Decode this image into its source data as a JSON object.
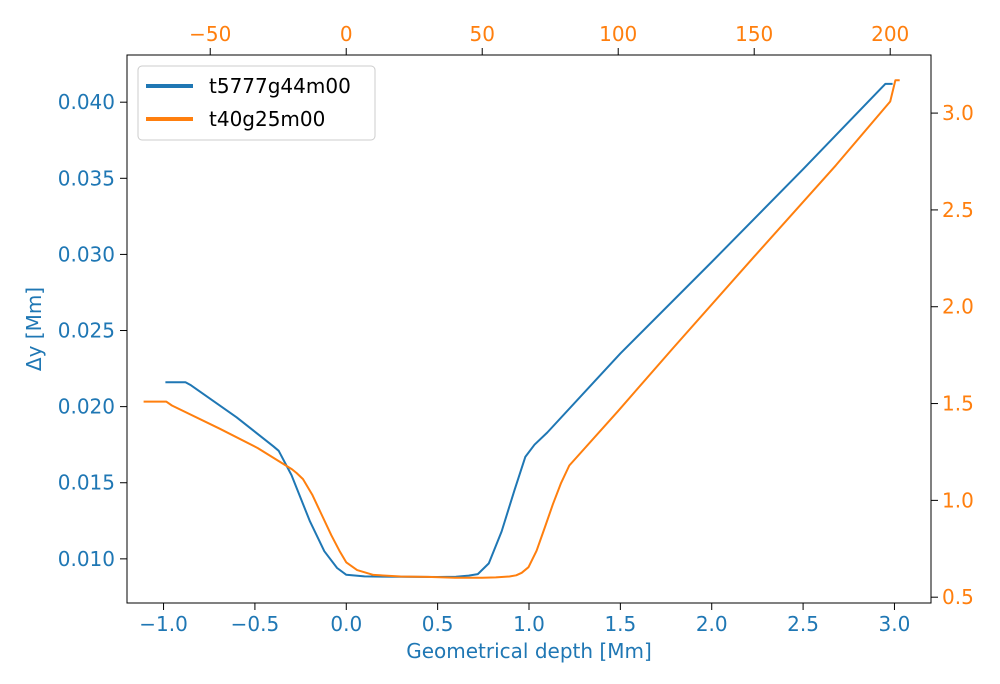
{
  "colors": {
    "bottom_left_axis": "#1f77b4",
    "top_right_axis": "#ff7f0e",
    "series_1": "#1f77b4",
    "series_2": "#ff7f0e"
  },
  "chart_data": {
    "type": "line",
    "xlabel": "Geometrical depth [Mm]",
    "ylabel": "Δy [Mm]",
    "legend_position": "upper-left",
    "grid": false,
    "bottom_axis": {
      "range": [
        -1.2,
        3.2
      ],
      "ticks": [
        -1.0,
        -0.5,
        0.0,
        0.5,
        1.0,
        1.5,
        2.0,
        2.5,
        3.0
      ],
      "tick_labels": [
        "−1.0",
        "−0.5",
        "0.0",
        "0.5",
        "1.0",
        "1.5",
        "2.0",
        "2.5",
        "3.0"
      ]
    },
    "left_axis": {
      "range": [
        0.0071,
        0.0431
      ],
      "ticks": [
        0.01,
        0.015,
        0.02,
        0.025,
        0.03,
        0.035,
        0.04
      ],
      "tick_labels": [
        "0.010",
        "0.015",
        "0.020",
        "0.025",
        "0.030",
        "0.035",
        "0.040"
      ]
    },
    "top_axis": {
      "range": [
        -80.6,
        215.0
      ],
      "ticks": [
        -50,
        0,
        50,
        100,
        150,
        200
      ],
      "tick_labels": [
        "−50",
        "0",
        "50",
        "100",
        "150",
        "200"
      ]
    },
    "right_axis": {
      "range": [
        0.47,
        3.3
      ],
      "ticks": [
        0.5,
        1.0,
        1.5,
        2.0,
        2.5,
        3.0
      ],
      "tick_labels": [
        "0.5",
        "1.0",
        "1.5",
        "2.0",
        "2.5",
        "3.0"
      ]
    },
    "series": [
      {
        "name": "t5777g44m00",
        "axes": "bottom-left",
        "x": [
          -0.99,
          -0.88,
          -0.85,
          -0.6,
          -0.4,
          -0.37,
          -0.3,
          -0.2,
          -0.12,
          -0.05,
          0.0,
          0.1,
          0.3,
          0.5,
          0.6,
          0.67,
          0.72,
          0.78,
          0.85,
          0.92,
          0.98,
          1.03,
          1.1,
          1.5,
          2.0,
          2.5,
          2.95,
          2.99
        ],
        "y": [
          0.0216,
          0.0216,
          0.0214,
          0.0193,
          0.0174,
          0.0171,
          0.0155,
          0.0125,
          0.0105,
          0.0094,
          0.00895,
          0.00885,
          0.00882,
          0.00881,
          0.00883,
          0.0089,
          0.009,
          0.0097,
          0.0118,
          0.0145,
          0.0167,
          0.0175,
          0.0183,
          0.0235,
          0.0295,
          0.0356,
          0.0412,
          0.0412
        ]
      },
      {
        "name": "t40g25m00",
        "axes": "top-right",
        "x": [
          -74.5,
          -66.2,
          -64.1,
          -46.5,
          -32.5,
          -19.9,
          -18.2,
          -15.9,
          -12.5,
          -9.5,
          -5.5,
          -2.5,
          0.0,
          4.0,
          10.0,
          20.0,
          30.0,
          40.0,
          50.0,
          55.0,
          60.0,
          62.5,
          64.5,
          67.0,
          70.0,
          73.0,
          76.0,
          79.0,
          82.0,
          100.0,
          120.0,
          150.0,
          180.0,
          200.0,
          201.9,
          203.5
        ],
        "y": [
          1.51,
          1.51,
          1.49,
          1.37,
          1.27,
          1.16,
          1.141,
          1.11,
          1.03,
          0.94,
          0.82,
          0.74,
          0.68,
          0.64,
          0.615,
          0.607,
          0.605,
          0.6,
          0.6,
          0.602,
          0.607,
          0.613,
          0.626,
          0.655,
          0.74,
          0.86,
          0.98,
          1.09,
          1.18,
          1.462,
          1.784,
          2.259,
          2.73,
          3.06,
          3.17,
          3.17
        ]
      }
    ]
  }
}
